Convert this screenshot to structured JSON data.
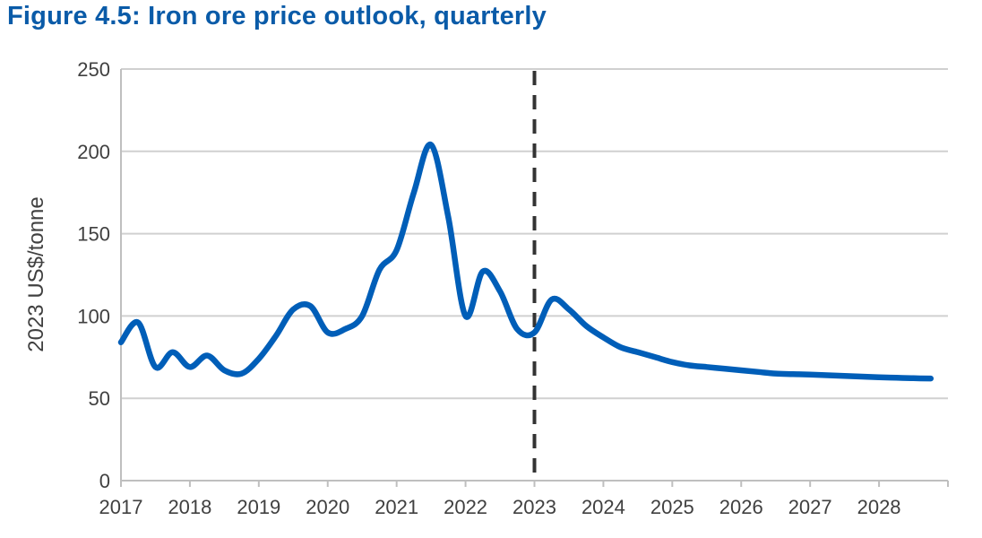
{
  "chart_data": {
    "type": "line",
    "title": "Figure 4.5: Iron ore price outlook, quarterly",
    "xlabel": "",
    "ylabel": "2023 US$/tonne",
    "ylim": [
      0,
      250
    ],
    "yticks": [
      0,
      50,
      100,
      150,
      200,
      250
    ],
    "xlim": [
      2017,
      2029
    ],
    "xticks": [
      "2017",
      "2018",
      "2019",
      "2020",
      "2021",
      "2022",
      "2023",
      "2024",
      "2025",
      "2026",
      "2027",
      "2028"
    ],
    "grid": "horizontal",
    "forecast_marker": {
      "x": 2023,
      "style": "dashed"
    },
    "colors": {
      "line": "#005eb8",
      "title": "#0a5ba8",
      "marker": "#333333",
      "grid": "#d0d0d0"
    },
    "series": [
      {
        "x": [
          "2017Q1",
          "2017Q2",
          "2017Q3",
          "2017Q4",
          "2018Q1",
          "2018Q2",
          "2018Q3",
          "2018Q4",
          "2019Q1",
          "2019Q2",
          "2019Q3",
          "2019Q4",
          "2020Q1",
          "2020Q2",
          "2020Q3",
          "2020Q4",
          "2021Q1",
          "2021Q2",
          "2021Q3",
          "2021Q4",
          "2022Q1",
          "2022Q2",
          "2022Q3",
          "2022Q4",
          "2023Q1",
          "2023Q2",
          "2023Q3",
          "2023Q4",
          "2024Q1",
          "2024Q2",
          "2024Q3",
          "2024Q4",
          "2025Q1",
          "2025Q2",
          "2025Q3",
          "2025Q4",
          "2026Q1",
          "2026Q2",
          "2026Q3",
          "2026Q4",
          "2027Q1",
          "2027Q2",
          "2027Q3",
          "2027Q4",
          "2028Q1",
          "2028Q2",
          "2028Q3",
          "2028Q4"
        ],
        "values": [
          84,
          96,
          69,
          78,
          69,
          76,
          67,
          65,
          74,
          88,
          104,
          106,
          90,
          92,
          100,
          128,
          140,
          175,
          204,
          160,
          100,
          127,
          115,
          92,
          90,
          110,
          104,
          94,
          87,
          81,
          78,
          75,
          72,
          70,
          69,
          68,
          67,
          66,
          65,
          64.7,
          64.4,
          64,
          63.6,
          63.2,
          62.8,
          62.5,
          62.2,
          62
        ]
      }
    ]
  }
}
